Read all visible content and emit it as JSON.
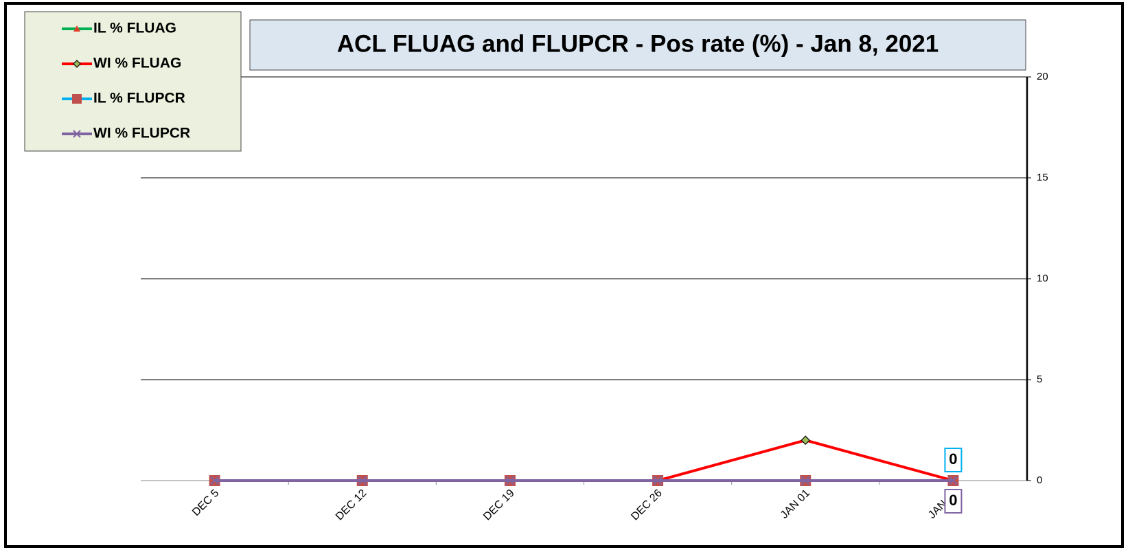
{
  "chart_data": {
    "type": "line",
    "title": "ACL FLUAG and FLUPCR -  Pos rate (%) - Jan 8, 2021",
    "categories": [
      "DEC 5",
      "DEC 12",
      "DEC 19",
      "DEC 26",
      "JAN 01",
      "JAN 08"
    ],
    "series": [
      {
        "name": "IL % FLUAG",
        "color": "#00b050",
        "marker": "triangle",
        "marker_color": "#e0402a",
        "values": [
          0,
          0,
          0,
          0,
          0,
          0
        ],
        "label_last": false
      },
      {
        "name": "WI % FLUAG",
        "color": "#ff0000",
        "marker": "diamond",
        "marker_color": "#9bbb59",
        "values": [
          0,
          0,
          0,
          0,
          2,
          0
        ],
        "label_last": false
      },
      {
        "name": "IL % FLUPCR",
        "color": "#00b0f0",
        "marker": "square",
        "marker_color": "#c0504d",
        "values": [
          0,
          0,
          0,
          0,
          0,
          0
        ],
        "label_last": true
      },
      {
        "name": "WI % FLUPCR",
        "color": "#8064a2",
        "marker": "x",
        "marker_color": "#8064a2",
        "values": [
          0,
          0,
          0,
          0,
          0,
          0
        ],
        "label_last": true
      }
    ],
    "ylim": [
      0,
      20
    ],
    "yticks": [
      0,
      5,
      10,
      15,
      20
    ],
    "grid": true,
    "y_axis_side": "right",
    "legend": "top-left"
  }
}
